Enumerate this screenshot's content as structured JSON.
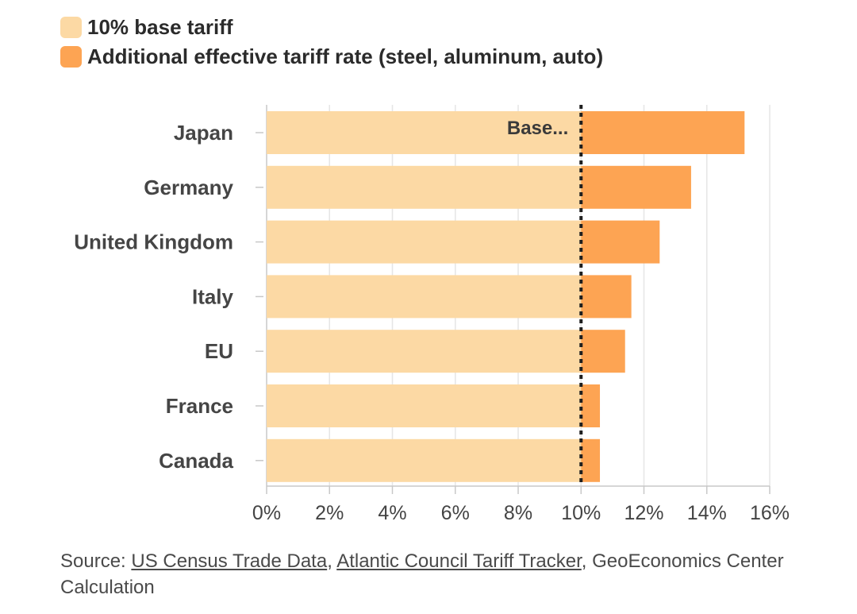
{
  "legend": {
    "items": [
      {
        "label": "10% base tariff",
        "color": "#fcd9a4"
      },
      {
        "label": "Additional effective tariff rate (steel, aluminum, auto)",
        "color": "#fda453"
      }
    ]
  },
  "chart_data": {
    "type": "bar",
    "orientation": "horizontal",
    "stacked": true,
    "categories": [
      "Japan",
      "Germany",
      "United Kingdom",
      "Italy",
      "EU",
      "France",
      "Canada"
    ],
    "series": [
      {
        "name": "10% base tariff",
        "values": [
          10,
          10,
          10,
          10,
          10,
          10,
          10
        ],
        "color": "#fcd9a4"
      },
      {
        "name": "Additional effective tariff rate (steel, aluminum, auto)",
        "values": [
          5.2,
          3.5,
          2.5,
          1.6,
          1.4,
          0.6,
          0.6
        ],
        "color": "#fda453"
      }
    ],
    "xlim": [
      0,
      16
    ],
    "xticks": [
      0,
      2,
      4,
      6,
      8,
      10,
      12,
      14,
      16
    ],
    "xtick_labels": [
      "0%",
      "2%",
      "4%",
      "6%",
      "8%",
      "10%",
      "12%",
      "14%",
      "16%"
    ],
    "reference_line": {
      "value": 10,
      "label": "Base..."
    },
    "grid": true,
    "title": "",
    "xlabel": "",
    "ylabel": ""
  },
  "source": {
    "prefix": "Source: ",
    "link1": "US Census Trade Data",
    "sep": ", ",
    "link2": "Atlantic Council Tariff Tracker",
    "suffix": ", GeoEconomics Center Calculation"
  }
}
